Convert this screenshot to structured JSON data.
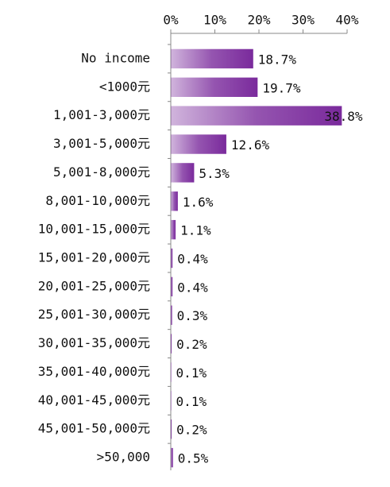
{
  "chart_data": {
    "type": "bar",
    "orientation": "horizontal",
    "color": "#7a2a9c",
    "categories": [
      "No income",
      "<1000元",
      "1,001-3,000元",
      "3,001-5,000元",
      "5,001-8,000元",
      "8,001-10,000元",
      "10,001-15,000元",
      "15,001-20,000元",
      "20,001-25,000元",
      "25,001-30,000元",
      "30,001-35,000元",
      "35,001-40,000元",
      "40,001-45,000元",
      "45,001-50,000元",
      ">50,000"
    ],
    "values": [
      18.7,
      19.7,
      38.8,
      12.6,
      5.3,
      1.6,
      1.1,
      0.4,
      0.4,
      0.3,
      0.2,
      0.1,
      0.1,
      0.2,
      0.5
    ],
    "value_labels": [
      "18.7%",
      "19.7%",
      "38.8%",
      "12.6%",
      "5.3%",
      "1.6%",
      "1.1%",
      "0.4%",
      "0.4%",
      "0.3%",
      "0.2%",
      "0.1%",
      "0.1%",
      "0.2%",
      "0.5%"
    ],
    "xlim": [
      0,
      40
    ],
    "xticks": [
      {
        "value": 0,
        "label": "0%"
      },
      {
        "value": 10,
        "label": "10%"
      },
      {
        "value": 20,
        "label": "20%"
      },
      {
        "value": 30,
        "label": "30%"
      },
      {
        "value": 40,
        "label": "40%"
      }
    ]
  }
}
